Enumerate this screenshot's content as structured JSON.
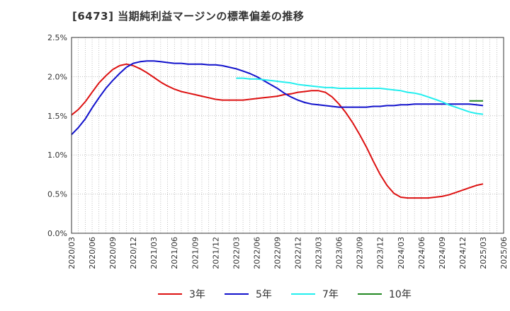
{
  "title": "[6473]  当期純利益マージンの標準偏差の推移",
  "chart_data": {
    "type": "line",
    "x": [
      "2020/03",
      "2020/06",
      "2020/09",
      "2020/12",
      "2021/03",
      "2021/06",
      "2021/09",
      "2021/12",
      "2022/03",
      "2022/06",
      "2022/09",
      "2022/12",
      "2023/03",
      "2023/06",
      "2023/09",
      "2023/12",
      "2024/03",
      "2024/06",
      "2024/09",
      "2024/12",
      "2025/03",
      "2025/06"
    ],
    "ylim": [
      0,
      2.5
    ],
    "yticks": [
      0,
      0.5,
      1.0,
      1.5,
      2.0,
      2.5
    ],
    "ytick_labels": [
      "0.0%",
      "0.5%",
      "1.0%",
      "1.5%",
      "2.0%",
      "2.5%"
    ],
    "grid": true,
    "legend_position": "bottom",
    "series": [
      {
        "name": "3年",
        "color": "#dd1111",
        "points": [
          [
            "2020/03",
            1.51
          ],
          [
            "2020/04",
            1.58
          ],
          [
            "2020/05",
            1.68
          ],
          [
            "2020/06",
            1.8
          ],
          [
            "2020/07",
            1.92
          ],
          [
            "2020/08",
            2.01
          ],
          [
            "2020/09",
            2.09
          ],
          [
            "2020/10",
            2.14
          ],
          [
            "2020/11",
            2.16
          ],
          [
            "2020/12",
            2.14
          ],
          [
            "2021/01",
            2.1
          ],
          [
            "2021/02",
            2.05
          ],
          [
            "2021/03",
            1.99
          ],
          [
            "2021/04",
            1.93
          ],
          [
            "2021/05",
            1.88
          ],
          [
            "2021/06",
            1.84
          ],
          [
            "2021/07",
            1.81
          ],
          [
            "2021/08",
            1.79
          ],
          [
            "2021/09",
            1.77
          ],
          [
            "2021/10",
            1.75
          ],
          [
            "2021/11",
            1.73
          ],
          [
            "2021/12",
            1.71
          ],
          [
            "2022/01",
            1.7
          ],
          [
            "2022/02",
            1.7
          ],
          [
            "2022/03",
            1.7
          ],
          [
            "2022/04",
            1.7
          ],
          [
            "2022/05",
            1.71
          ],
          [
            "2022/06",
            1.72
          ],
          [
            "2022/07",
            1.73
          ],
          [
            "2022/08",
            1.74
          ],
          [
            "2022/09",
            1.75
          ],
          [
            "2022/10",
            1.77
          ],
          [
            "2022/11",
            1.78
          ],
          [
            "2022/12",
            1.8
          ],
          [
            "2023/01",
            1.81
          ],
          [
            "2023/02",
            1.82
          ],
          [
            "2023/03",
            1.82
          ],
          [
            "2023/04",
            1.8
          ],
          [
            "2023/05",
            1.74
          ],
          [
            "2023/06",
            1.65
          ],
          [
            "2023/07",
            1.54
          ],
          [
            "2023/08",
            1.41
          ],
          [
            "2023/09",
            1.26
          ],
          [
            "2023/10",
            1.1
          ],
          [
            "2023/11",
            0.92
          ],
          [
            "2023/12",
            0.75
          ],
          [
            "2024/01",
            0.61
          ],
          [
            "2024/02",
            0.51
          ],
          [
            "2024/03",
            0.46
          ],
          [
            "2024/04",
            0.45
          ],
          [
            "2024/05",
            0.45
          ],
          [
            "2024/06",
            0.45
          ],
          [
            "2024/07",
            0.45
          ],
          [
            "2024/08",
            0.46
          ],
          [
            "2024/09",
            0.47
          ],
          [
            "2024/10",
            0.49
          ],
          [
            "2024/11",
            0.52
          ],
          [
            "2024/12",
            0.55
          ],
          [
            "2025/01",
            0.58
          ],
          [
            "2025/02",
            0.61
          ],
          [
            "2025/03",
            0.63
          ]
        ]
      },
      {
        "name": "5年",
        "color": "#1111cc",
        "points": [
          [
            "2020/03",
            1.26
          ],
          [
            "2020/04",
            1.35
          ],
          [
            "2020/05",
            1.46
          ],
          [
            "2020/06",
            1.6
          ],
          [
            "2020/07",
            1.73
          ],
          [
            "2020/08",
            1.85
          ],
          [
            "2020/09",
            1.95
          ],
          [
            "2020/10",
            2.04
          ],
          [
            "2020/11",
            2.12
          ],
          [
            "2020/12",
            2.17
          ],
          [
            "2021/01",
            2.19
          ],
          [
            "2021/02",
            2.2
          ],
          [
            "2021/03",
            2.2
          ],
          [
            "2021/04",
            2.19
          ],
          [
            "2021/05",
            2.18
          ],
          [
            "2021/06",
            2.17
          ],
          [
            "2021/07",
            2.17
          ],
          [
            "2021/08",
            2.16
          ],
          [
            "2021/09",
            2.16
          ],
          [
            "2021/10",
            2.16
          ],
          [
            "2021/11",
            2.15
          ],
          [
            "2021/12",
            2.15
          ],
          [
            "2022/01",
            2.14
          ],
          [
            "2022/02",
            2.12
          ],
          [
            "2022/03",
            2.1
          ],
          [
            "2022/04",
            2.07
          ],
          [
            "2022/05",
            2.04
          ],
          [
            "2022/06",
            2.0
          ],
          [
            "2022/07",
            1.95
          ],
          [
            "2022/08",
            1.9
          ],
          [
            "2022/09",
            1.85
          ],
          [
            "2022/10",
            1.79
          ],
          [
            "2022/11",
            1.74
          ],
          [
            "2022/12",
            1.7
          ],
          [
            "2023/01",
            1.67
          ],
          [
            "2023/02",
            1.65
          ],
          [
            "2023/03",
            1.64
          ],
          [
            "2023/04",
            1.63
          ],
          [
            "2023/05",
            1.62
          ],
          [
            "2023/06",
            1.61
          ],
          [
            "2023/07",
            1.61
          ],
          [
            "2023/08",
            1.61
          ],
          [
            "2023/09",
            1.61
          ],
          [
            "2023/10",
            1.61
          ],
          [
            "2023/11",
            1.62
          ],
          [
            "2023/12",
            1.62
          ],
          [
            "2024/01",
            1.63
          ],
          [
            "2024/02",
            1.63
          ],
          [
            "2024/03",
            1.64
          ],
          [
            "2024/04",
            1.64
          ],
          [
            "2024/05",
            1.65
          ],
          [
            "2024/06",
            1.65
          ],
          [
            "2024/07",
            1.65
          ],
          [
            "2024/08",
            1.65
          ],
          [
            "2024/09",
            1.65
          ],
          [
            "2024/10",
            1.65
          ],
          [
            "2024/11",
            1.65
          ],
          [
            "2024/12",
            1.65
          ],
          [
            "2025/01",
            1.65
          ],
          [
            "2025/02",
            1.64
          ],
          [
            "2025/03",
            1.63
          ]
        ]
      },
      {
        "name": "7年",
        "color": "#22eeee",
        "points": [
          [
            "2022/03",
            1.98
          ],
          [
            "2022/04",
            1.98
          ],
          [
            "2022/05",
            1.97
          ],
          [
            "2022/06",
            1.97
          ],
          [
            "2022/07",
            1.96
          ],
          [
            "2022/08",
            1.95
          ],
          [
            "2022/09",
            1.94
          ],
          [
            "2022/10",
            1.93
          ],
          [
            "2022/11",
            1.92
          ],
          [
            "2022/12",
            1.9
          ],
          [
            "2023/01",
            1.89
          ],
          [
            "2023/02",
            1.88
          ],
          [
            "2023/03",
            1.87
          ],
          [
            "2023/04",
            1.86
          ],
          [
            "2023/05",
            1.86
          ],
          [
            "2023/06",
            1.85
          ],
          [
            "2023/07",
            1.85
          ],
          [
            "2023/08",
            1.85
          ],
          [
            "2023/09",
            1.85
          ],
          [
            "2023/10",
            1.85
          ],
          [
            "2023/11",
            1.85
          ],
          [
            "2023/12",
            1.85
          ],
          [
            "2024/01",
            1.84
          ],
          [
            "2024/02",
            1.83
          ],
          [
            "2024/03",
            1.82
          ],
          [
            "2024/04",
            1.8
          ],
          [
            "2024/05",
            1.79
          ],
          [
            "2024/06",
            1.77
          ],
          [
            "2024/07",
            1.74
          ],
          [
            "2024/08",
            1.71
          ],
          [
            "2024/09",
            1.68
          ],
          [
            "2024/10",
            1.64
          ],
          [
            "2024/11",
            1.61
          ],
          [
            "2024/12",
            1.58
          ],
          [
            "2025/01",
            1.55
          ],
          [
            "2025/02",
            1.53
          ],
          [
            "2025/03",
            1.52
          ]
        ]
      },
      {
        "name": "10年",
        "color": "#228822",
        "points": [
          [
            "2025/01",
            1.69
          ],
          [
            "2025/02",
            1.69
          ],
          [
            "2025/03",
            1.69
          ]
        ]
      }
    ]
  }
}
